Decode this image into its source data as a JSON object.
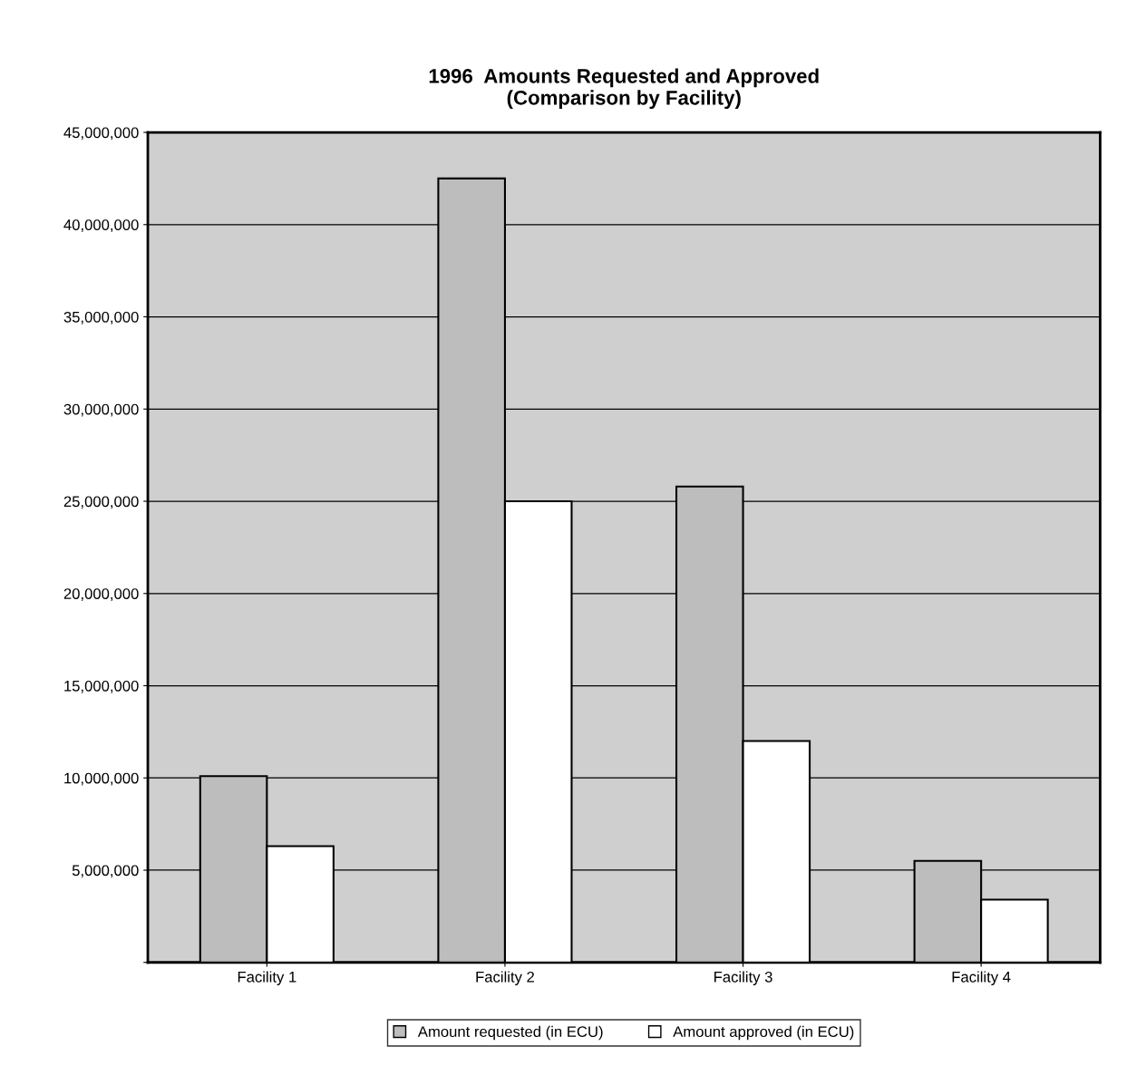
{
  "chart_data": {
    "type": "bar",
    "title": "1996  Amounts Requested and Approved\n(Comparison by Facility)",
    "categories": [
      "Facility 1",
      "Facility 2",
      "Facility 3",
      "Facility 4"
    ],
    "series": [
      {
        "name": "Amount requested (in ECU)",
        "color": "#bdbdbd",
        "values": [
          10100000,
          42500000,
          25800000,
          5500000
        ]
      },
      {
        "name": "Amount approved (in ECU)",
        "color": "#ffffff",
        "values": [
          6300000,
          25000000,
          12000000,
          3400000
        ]
      }
    ],
    "ylim": [
      0,
      45000000
    ],
    "yticks": [
      {
        "value": 0,
        "label": null
      },
      {
        "value": 5000000,
        "label": "5,000,000"
      },
      {
        "value": 10000000,
        "label": "10,000,000"
      },
      {
        "value": 15000000,
        "label": "15,000,000"
      },
      {
        "value": 20000000,
        "label": "20,000,000"
      },
      {
        "value": 25000000,
        "label": "25,000,000"
      },
      {
        "value": 30000000,
        "label": "30,000,000"
      },
      {
        "value": 35000000,
        "label": "35,000,000"
      },
      {
        "value": 40000000,
        "label": "40,000,000"
      },
      {
        "value": 45000000,
        "label": "45,000,000"
      }
    ],
    "grid": "y",
    "legend": "bottom"
  }
}
